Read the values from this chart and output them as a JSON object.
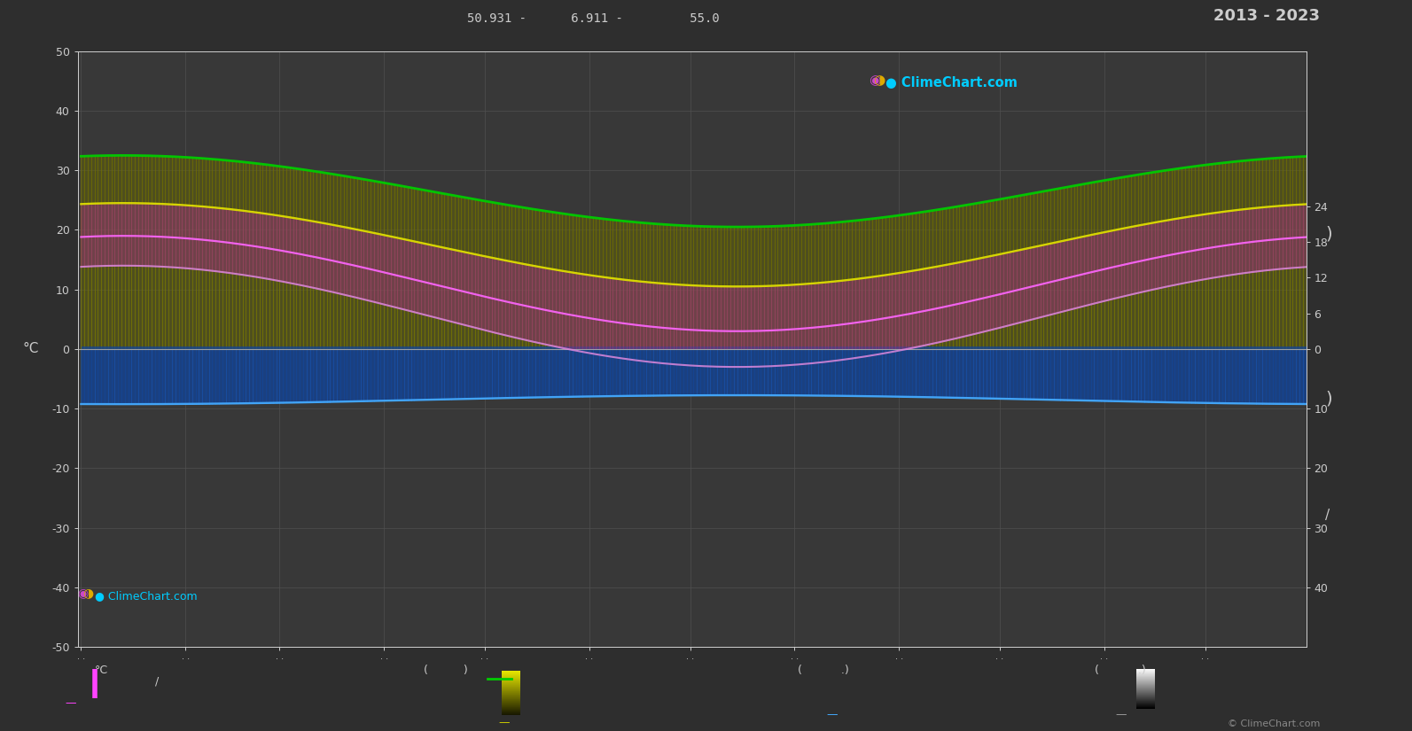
{
  "title_top": "50.931 -      6.911 -         55.0",
  "title_year": "2013 - 2023",
  "logo_text": "ClimeChart.com",
  "copyright": "© ClimeChart.com",
  "ylabel_left": "°C",
  "ylim": [
    -50,
    50
  ],
  "xlim": [
    0,
    365
  ],
  "yticks_left": [
    50,
    40,
    30,
    20,
    10,
    0,
    -10,
    -20,
    -30,
    -40,
    -50
  ],
  "bg_color": "#2e2e2e",
  "plot_bg_color": "#383838",
  "grid_color": "#505050",
  "label_color": "#cccccc",
  "green_line_color": "#00cc00",
  "yellow_line_color": "#dddd00",
  "pink_line_color": "#ff66ff",
  "pink2_line_color": "#dd88dd",
  "blue_line_color": "#44aaff",
  "olive_fill_color": "#888800",
  "pink_fill_color": "#aa3388",
  "blue_fill_color": "#1144aa",
  "streak_olive": "#999900",
  "streak_pink": "#993388",
  "streak_blue": "#1155bb",
  "streak_gray": "#555555",
  "right_yticks_vals": [
    24,
    18,
    12,
    6,
    0,
    -10,
    -20,
    -30,
    -40
  ],
  "right_ytick_labels": [
    "24",
    "18",
    "12",
    "6",
    "0",
    "10",
    "20",
    "30",
    "40"
  ],
  "n_days": 365
}
